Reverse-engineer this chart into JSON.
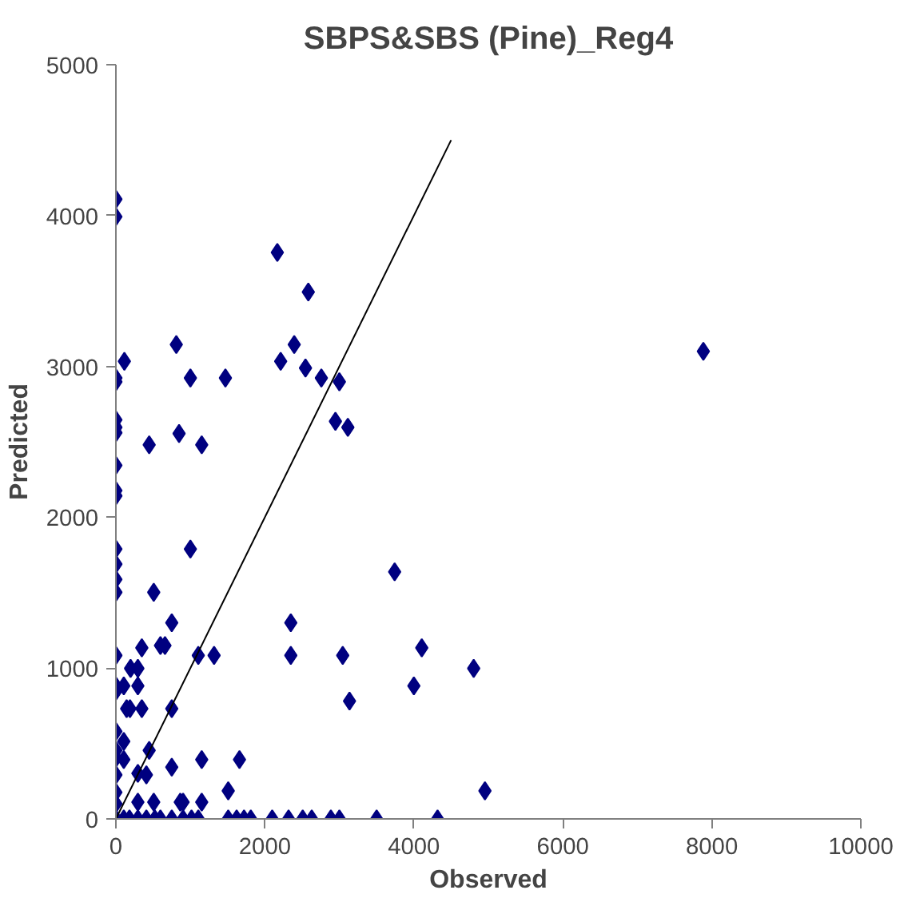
{
  "chart_data": {
    "type": "scatter",
    "title": "SBPS&SBS (Pine)_Reg4",
    "xlabel": "Observed",
    "ylabel": "Predicted",
    "xlim": [
      0,
      10000
    ],
    "ylim": [
      0,
      5000
    ],
    "xticks": [
      0,
      2000,
      4000,
      6000,
      8000,
      10000
    ],
    "yticks": [
      0,
      1000,
      2000,
      3000,
      4000,
      5000
    ],
    "grid": false,
    "marker": "diamond",
    "series": [
      {
        "color": "#000080",
        "x": [
          0,
          0,
          0,
          0,
          0,
          0,
          0,
          0,
          0,
          0,
          0,
          0,
          0,
          0,
          0,
          0,
          0,
          0,
          0,
          0,
          0,
          0,
          0,
          0,
          114,
          447,
          811,
          848,
          1000,
          1152,
          1470,
          1000,
          508,
          750,
          598,
          659,
          348,
          197,
          295,
          106,
          295,
          144,
          189,
          348,
          750,
          1106,
          1318,
          447,
          106,
          106,
          295,
          409,
          750,
          1152,
          1659,
          508,
          864,
          902,
          1152,
          1508,
          295,
          106,
          182,
          295,
          409,
          523,
          598,
          750,
          902,
          1015,
          1106,
          1508,
          1621,
          1720,
          1811,
          2098,
          2318,
          2508,
          2629,
          2886,
          3000,
          3500,
          4318,
          2167,
          2583,
          2212,
          2394,
          2545,
          2758,
          3000,
          2947,
          3114,
          3742,
          2348,
          2348,
          3045,
          3136,
          4106,
          4000,
          4803,
          7886,
          4954
        ],
        "values": [
          4108,
          3992,
          2923,
          2898,
          2646,
          2596,
          2560,
          2344,
          2177,
          2142,
          1789,
          1689,
          1588,
          1502,
          1084,
          882,
          847,
          580,
          454,
          403,
          292,
          176,
          101,
          0,
          3034,
          2480,
          3145,
          2555,
          2923,
          2480,
          2923,
          1789,
          1502,
          1300,
          1149,
          1149,
          1134,
          998,
          998,
          882,
          882,
          731,
          731,
          731,
          731,
          1084,
          1084,
          454,
          514,
          393,
          302,
          292,
          343,
          393,
          393,
          111,
          111,
          111,
          111,
          186,
          111,
          0,
          0,
          0,
          0,
          0,
          0,
          0,
          0,
          0,
          0,
          0,
          0,
          0,
          0,
          0,
          0,
          0,
          0,
          0,
          0,
          0,
          0,
          3755,
          3493,
          3034,
          3145,
          2989,
          2923,
          2898,
          2636,
          2596,
          1638,
          1300,
          1084,
          1084,
          781,
          1134,
          882,
          998,
          3100,
          186
        ]
      },
      {
        "type": "line",
        "color": "#000000",
        "x": [
          0,
          4500
        ],
        "values": [
          0,
          4500
        ],
        "marker": "none"
      }
    ]
  }
}
